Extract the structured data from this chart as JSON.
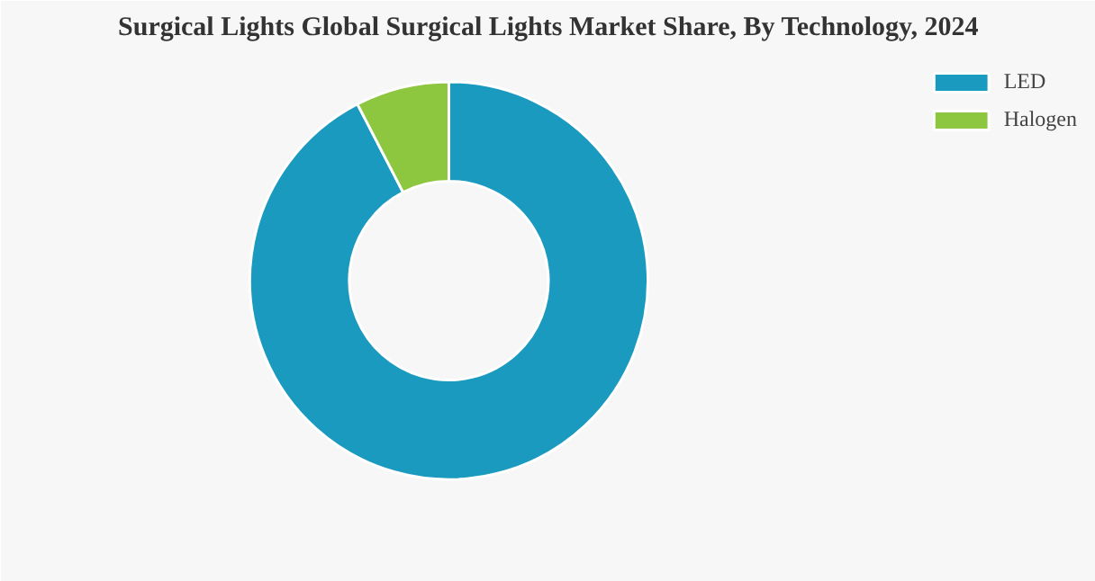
{
  "chart_data": {
    "type": "donut",
    "title": "Surgical Lights Global Surgical Lights Market Share, By Technology, 2024",
    "categories": [
      "LED",
      "Halogen"
    ],
    "values": [
      92.4,
      7.6
    ],
    "colors": [
      "#1b9ac0",
      "#8dc63f"
    ],
    "legend": "top right"
  }
}
